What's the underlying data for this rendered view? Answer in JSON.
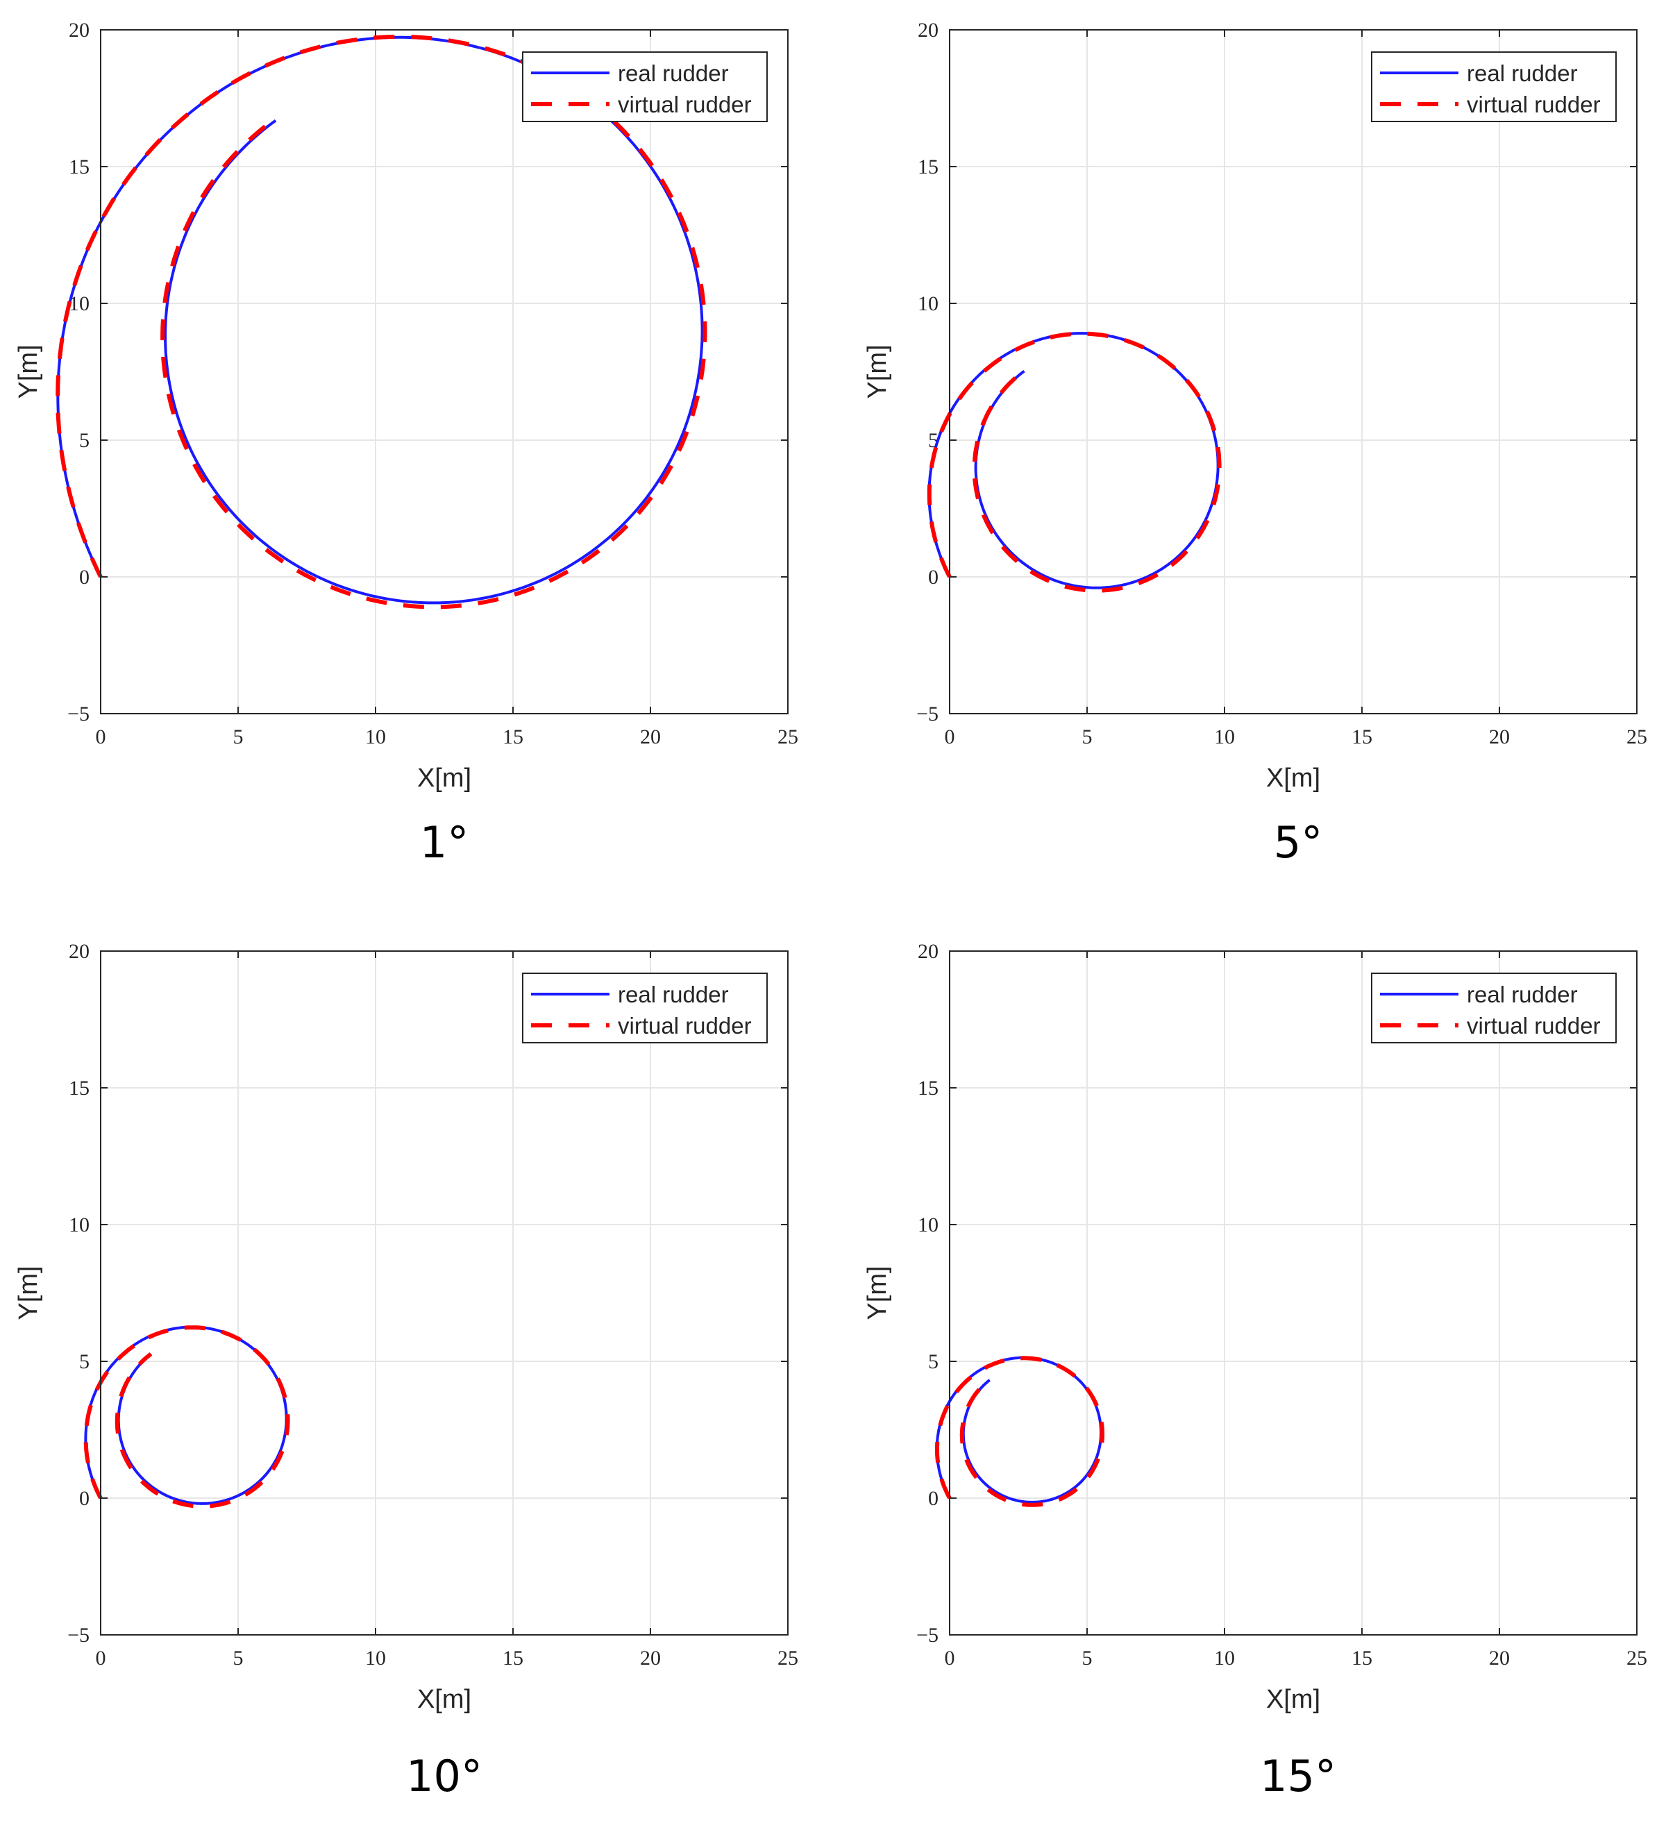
{
  "colors": {
    "real": "#1a1aff",
    "virtual": "#ff0000",
    "grid": "#e6e6e6",
    "axis": "#262626"
  },
  "chart_data": [
    {
      "type": "line",
      "caption": "1°",
      "xlabel": "X[m]",
      "ylabel": "Y[m]",
      "xlim": [
        0,
        25
      ],
      "ylim": [
        -5,
        20
      ],
      "xticks": [
        0,
        5,
        10,
        15,
        20,
        25
      ],
      "yticks": [
        -5,
        0,
        5,
        10,
        15,
        20
      ],
      "xtick_labels": [
        "0",
        "5",
        "10",
        "15",
        "20",
        "25"
      ],
      "ytick_labels": [
        "−5",
        "0",
        "5",
        "10",
        "15",
        "20"
      ],
      "grid": true,
      "legend_position": "top-right",
      "turn": {
        "cx": 12.1,
        "cy": 8.8,
        "r": 9.75,
        "r_virtual": 9.85,
        "start_x": 0,
        "start_y": 0
      },
      "series": [
        {
          "name": "real rudder",
          "style": "solid"
        },
        {
          "name": "virtual rudder",
          "style": "dashed"
        }
      ]
    },
    {
      "type": "line",
      "caption": "5°",
      "xlabel": "X[m]",
      "ylabel": "Y[m]",
      "xlim": [
        0,
        25
      ],
      "ylim": [
        -5,
        20
      ],
      "xticks": [
        0,
        5,
        10,
        15,
        20,
        25
      ],
      "yticks": [
        -5,
        0,
        5,
        10,
        15,
        20
      ],
      "xtick_labels": [
        "0",
        "5",
        "10",
        "15",
        "20",
        "25"
      ],
      "ytick_labels": [
        "−5",
        "0",
        "5",
        "10",
        "15",
        "20"
      ],
      "grid": true,
      "legend_position": "top-right",
      "turn": {
        "cx": 5.35,
        "cy": 4.0,
        "r": 4.4,
        "r_virtual": 4.45,
        "start_x": 0,
        "start_y": 0
      },
      "series": [
        {
          "name": "real rudder",
          "style": "solid"
        },
        {
          "name": "virtual rudder",
          "style": "dashed"
        }
      ]
    },
    {
      "type": "line",
      "caption": "10°",
      "xlabel": "X[m]",
      "ylabel": "Y[m]",
      "xlim": [
        0,
        25
      ],
      "ylim": [
        -5,
        20
      ],
      "xticks": [
        0,
        5,
        10,
        15,
        20,
        25
      ],
      "yticks": [
        -5,
        0,
        5,
        10,
        15,
        20
      ],
      "xtick_labels": [
        "0",
        "5",
        "10",
        "15",
        "20",
        "25"
      ],
      "ytick_labels": [
        "−5",
        "0",
        "5",
        "10",
        "15",
        "20"
      ],
      "grid": true,
      "legend_position": "top-right",
      "turn": {
        "cx": 3.7,
        "cy": 2.85,
        "r": 3.05,
        "r_virtual": 3.1,
        "start_x": 0,
        "start_y": 0
      },
      "series": [
        {
          "name": "real rudder",
          "style": "solid"
        },
        {
          "name": "virtual rudder",
          "style": "dashed"
        }
      ]
    },
    {
      "type": "line",
      "caption": "15°",
      "xlabel": "X[m]",
      "ylabel": "Y[m]",
      "xlim": [
        0,
        25
      ],
      "ylim": [
        -5,
        20
      ],
      "xticks": [
        0,
        5,
        10,
        15,
        20,
        25
      ],
      "yticks": [
        -5,
        0,
        5,
        10,
        15,
        20
      ],
      "xtick_labels": [
        "0",
        "5",
        "10",
        "15",
        "20",
        "25"
      ],
      "ytick_labels": [
        "−5",
        "0",
        "5",
        "10",
        "15",
        "20"
      ],
      "grid": true,
      "legend_position": "top-right",
      "turn": {
        "cx": 3.0,
        "cy": 2.35,
        "r": 2.5,
        "r_virtual": 2.55,
        "start_x": 0,
        "start_y": 0
      },
      "series": [
        {
          "name": "real rudder",
          "style": "solid"
        },
        {
          "name": "virtual rudder",
          "style": "dashed"
        }
      ]
    }
  ]
}
